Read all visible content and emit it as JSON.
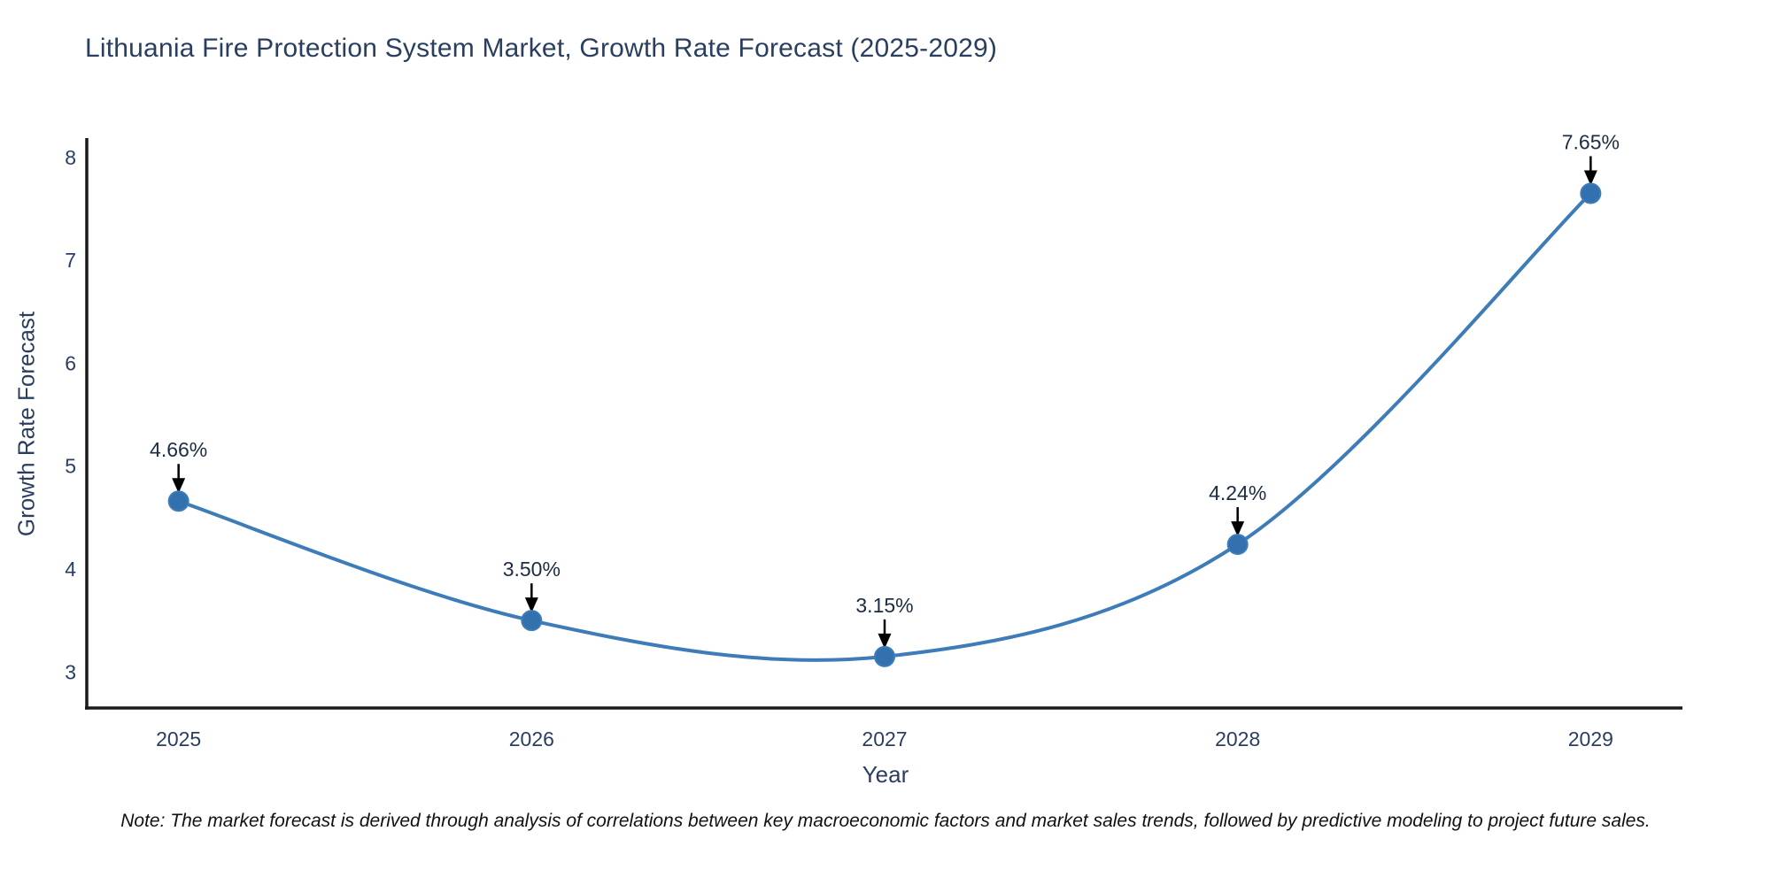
{
  "chart_data": {
    "type": "line",
    "title": "Lithuania Fire Protection System Market, Growth Rate Forecast (2025-2029)",
    "xlabel": "Year",
    "ylabel": "Growth Rate Forecast",
    "categories": [
      2025,
      2026,
      2027,
      2028,
      2029
    ],
    "values": [
      4.66,
      3.5,
      3.15,
      4.24,
      7.65
    ],
    "point_labels": [
      "4.66%",
      "3.50%",
      "3.15%",
      "4.24%",
      "7.65%"
    ],
    "y_ticks": [
      3,
      4,
      5,
      6,
      7,
      8
    ],
    "x_range": [
      2024.74,
      2029.26
    ],
    "y_range": [
      2.65,
      8.17
    ],
    "grid": false,
    "legend_position": "none",
    "line_shape": "spline",
    "note": "Note: The market forecast is derived through analysis of correlations between key macroeconomic factors and market sales trends, followed by predictive modeling to project future sales.",
    "colors": {
      "line": "#3E7CB9",
      "marker": "#3270AE",
      "annotation_arrow": "#000000",
      "axis_line": "#1a1a1a",
      "chart_text": "#2a3f5f",
      "note_text": "#111111",
      "background": "#ffffff"
    }
  }
}
